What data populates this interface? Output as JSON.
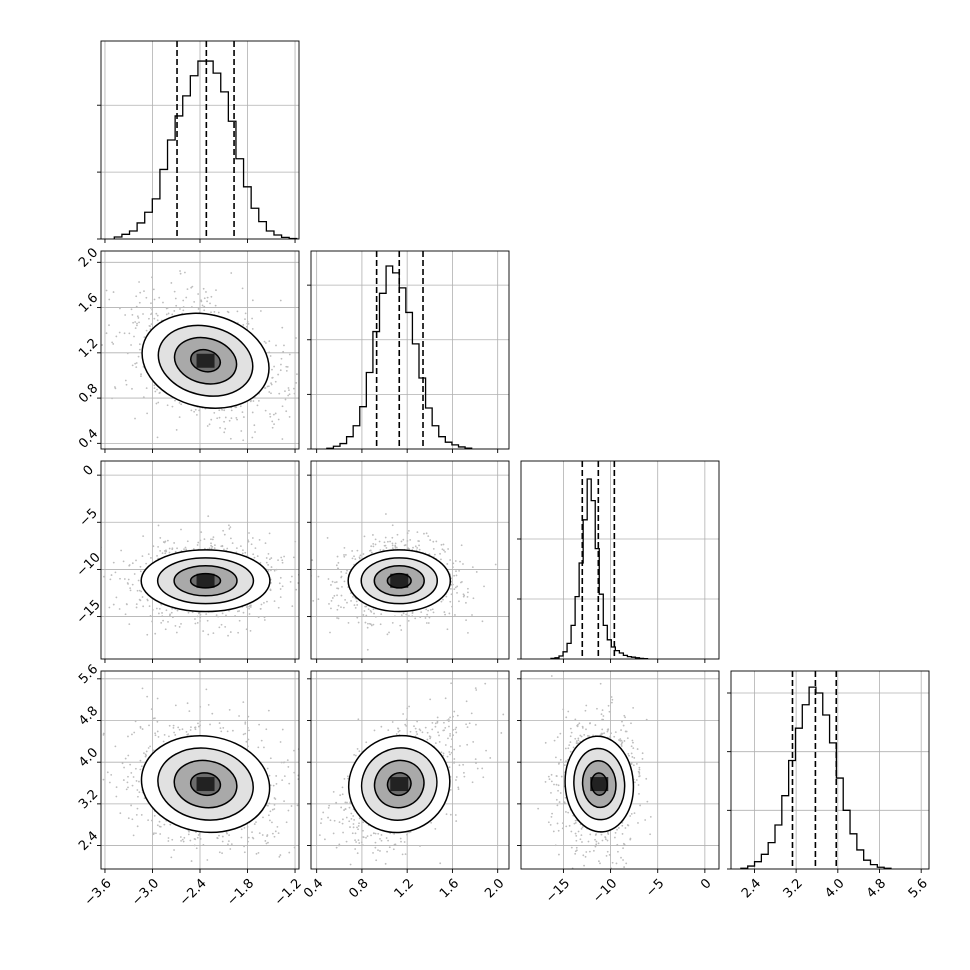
{
  "chart_data": {
    "type": "corner",
    "grid": true,
    "parameters": [
      {
        "range": [
          -3.65,
          -1.15
        ],
        "ticks": [
          {
            "value": -3.6,
            "label": "−3.6"
          },
          {
            "value": -3.0,
            "label": "−3.0"
          },
          {
            "value": -2.4,
            "label": "−2.4"
          },
          {
            "value": -1.8,
            "label": "−1.8"
          },
          {
            "value": -1.2,
            "label": "−1.2"
          }
        ],
        "quantiles": [
          -2.69,
          -2.32,
          -1.97
        ],
        "peak": -2.33,
        "sigma": 0.36,
        "hist": [
          1.5,
          3.5,
          6,
          12,
          20,
          30,
          52,
          74,
          92,
          107,
          122,
          133,
          133,
          124,
          110,
          88,
          60,
          39,
          23,
          13,
          6,
          3,
          1.2,
          0.4
        ],
        "hist_ylim": [
          0,
          148
        ],
        "hist_yticks": [
          0,
          50,
          100
        ]
      },
      {
        "range": [
          0.35,
          2.1
        ],
        "ticks": [
          {
            "value": 0.4,
            "label": "0.4"
          },
          {
            "value": 0.8,
            "label": "0.8"
          },
          {
            "value": 1.2,
            "label": "1.2"
          },
          {
            "value": 1.6,
            "label": "1.6"
          },
          {
            "value": 2.0,
            "label": "2.0"
          }
        ],
        "quantiles": [
          0.93,
          1.13,
          1.34
        ],
        "peak": 1.13,
        "sigma": 0.2,
        "hist": [
          0.5,
          2,
          4,
          9,
          17,
          31,
          56,
          86,
          114,
          134,
          129,
          118,
          100,
          77,
          52,
          30,
          17,
          9,
          5,
          3,
          1.5,
          0.6
        ],
        "hist_ylim": [
          0,
          145
        ],
        "hist_yticks": [
          0,
          40,
          80,
          120
        ]
      },
      {
        "range": [
          -19.5,
          1.5
        ],
        "ticks": [
          {
            "value": -15,
            "label": "−15"
          },
          {
            "value": -10,
            "label": "−10"
          },
          {
            "value": -5,
            "label": "−5"
          },
          {
            "value": 0,
            "label": "0"
          }
        ],
        "ticks_y": [
          {
            "value": 0,
            "label": "0"
          },
          {
            "value": -5,
            "label": "−5"
          },
          {
            "value": -10,
            "label": "−10"
          },
          {
            "value": -15,
            "label": "−15"
          }
        ],
        "quantiles": [
          -13.0,
          -11.3,
          -9.6
        ],
        "peak": -11.2,
        "sigma": 1.6,
        "hist": [
          0.5,
          1,
          2.5,
          6,
          13,
          28,
          52,
          80,
          116,
          150,
          132,
          92,
          54,
          28,
          16,
          10,
          7,
          5,
          3,
          2,
          1.5,
          1,
          0.5,
          0.3
        ],
        "hist_ylim": [
          0,
          165
        ],
        "hist_yticks": [
          0,
          50,
          100
        ]
      },
      {
        "range": [
          1.95,
          5.75
        ],
        "ticks": [
          {
            "value": 2.4,
            "label": "2.4"
          },
          {
            "value": 3.2,
            "label": "3.2"
          },
          {
            "value": 4.0,
            "label": "4.0"
          },
          {
            "value": 4.8,
            "label": "4.8"
          },
          {
            "value": 5.6,
            "label": "5.6"
          }
        ],
        "quantiles": [
          3.13,
          3.57,
          3.97
        ],
        "peak": 3.58,
        "sigma": 0.45,
        "hist": [
          0.5,
          2,
          5,
          10,
          18,
          30,
          50,
          74,
          96,
          112,
          124,
          120,
          105,
          86,
          62,
          40,
          24,
          13,
          6,
          3,
          1.2,
          0.5
        ],
        "hist_ylim": [
          0,
          135
        ],
        "hist_yticks": [
          0,
          40,
          80,
          120
        ]
      }
    ],
    "correlations": [
      {
        "i": 1,
        "j": 0,
        "rho": -0.35
      },
      {
        "i": 2,
        "j": 0,
        "rho": 0.0
      },
      {
        "i": 2,
        "j": 1,
        "rho": 0.0
      },
      {
        "i": 3,
        "j": 0,
        "rho": -0.2
      },
      {
        "i": 3,
        "j": 1,
        "rho": 0.5
      },
      {
        "i": 3,
        "j": 2,
        "rho": 0.05
      }
    ]
  }
}
